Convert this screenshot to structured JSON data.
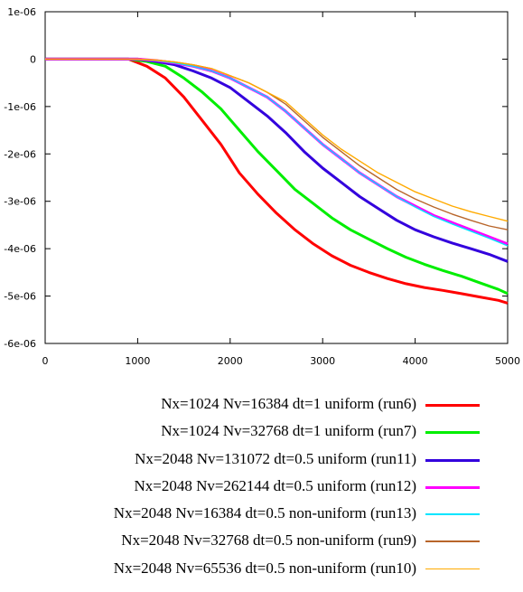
{
  "chart_data": {
    "type": "line",
    "title": "",
    "xlabel": "",
    "ylabel": "",
    "xlim": [
      0,
      5000
    ],
    "ylim": [
      -6e-06,
      1e-06
    ],
    "x_ticks": [
      0,
      1000,
      2000,
      3000,
      4000,
      5000
    ],
    "x_tick_labels": [
      "0",
      "1000",
      "2000",
      "3000",
      "4000",
      "5000"
    ],
    "y_ticks": [
      1e-06,
      0,
      -1e-06,
      -2e-06,
      -3e-06,
      -4e-06,
      -5e-06,
      -6e-06
    ],
    "y_tick_labels": [
      "1e-06",
      "0",
      "-1e-06",
      "-2e-06",
      "-3e-06",
      "-4e-06",
      "-5e-06",
      "-6e-06"
    ],
    "grid": false,
    "legend_position": "bottom",
    "series": [
      {
        "name": "Nx=1024 Nv=16384 dt=1 uniform (run6)",
        "color": "#ff0000",
        "width": 3,
        "x": [
          0,
          900,
          1100,
          1300,
          1500,
          1700,
          1900,
          2100,
          2300,
          2500,
          2700,
          2900,
          3100,
          3300,
          3500,
          3700,
          3900,
          4100,
          4300,
          4500,
          4700,
          4900,
          5000
        ],
        "y": [
          0,
          0,
          -1.5e-07,
          -4e-07,
          -8e-07,
          -1.3e-06,
          -1.8e-06,
          -2.4e-06,
          -2.85e-06,
          -3.25e-06,
          -3.6e-06,
          -3.9e-06,
          -4.15e-06,
          -4.35e-06,
          -4.5e-06,
          -4.63e-06,
          -4.74e-06,
          -4.82e-06,
          -4.88e-06,
          -4.95e-06,
          -5.02e-06,
          -5.09e-06,
          -5.15e-06
        ]
      },
      {
        "name": "Nx=1024 Nv=32768 dt=1 uniform (run7)",
        "color": "#00ee00",
        "width": 3,
        "x": [
          0,
          900,
          1100,
          1300,
          1500,
          1700,
          1900,
          2100,
          2300,
          2500,
          2700,
          2900,
          3100,
          3300,
          3500,
          3700,
          3900,
          4100,
          4300,
          4500,
          4700,
          4900,
          5000
        ],
        "y": [
          0,
          0,
          -5e-08,
          -1.5e-07,
          -4e-07,
          -7e-07,
          -1.05e-06,
          -1.5e-06,
          -1.95e-06,
          -2.35e-06,
          -2.75e-06,
          -3.05e-06,
          -3.35e-06,
          -3.6e-06,
          -3.8e-06,
          -4e-06,
          -4.18e-06,
          -4.33e-06,
          -4.46e-06,
          -4.58e-06,
          -4.72e-06,
          -4.86e-06,
          -4.95e-06
        ]
      },
      {
        "name": "Nx=2048 Nv=131072 dt=0.5 uniform (run11)",
        "color": "#3300dd",
        "width": 3,
        "x": [
          0,
          1000,
          1200,
          1400,
          1600,
          1800,
          2000,
          2200,
          2400,
          2600,
          2800,
          3000,
          3200,
          3400,
          3600,
          3800,
          4000,
          4200,
          4400,
          4600,
          4800,
          5000
        ],
        "y": [
          0,
          0,
          -5e-08,
          -1.2e-07,
          -2.5e-07,
          -4e-07,
          -6e-07,
          -9e-07,
          -1.2e-06,
          -1.55e-06,
          -1.95e-06,
          -2.3e-06,
          -2.6e-06,
          -2.9e-06,
          -3.15e-06,
          -3.4e-06,
          -3.6e-06,
          -3.75e-06,
          -3.88e-06,
          -4e-06,
          -4.12e-06,
          -4.27e-06
        ]
      },
      {
        "name": "Nx=2048 Nv=262144 dt=0.5 uniform (run12)",
        "color": "#ff00ff",
        "width": 3,
        "x": [
          0,
          1000,
          1200,
          1400,
          1600,
          1800,
          2000,
          2200,
          2400,
          2600,
          2800,
          3000,
          3200,
          3400,
          3600,
          3800,
          4000,
          4200,
          4400,
          4600,
          4800,
          5000
        ],
        "y": [
          0,
          0,
          -3e-08,
          -8e-08,
          -1.5e-07,
          -2.5e-07,
          -4e-07,
          -6e-07,
          -8e-07,
          -1.1e-06,
          -1.45e-06,
          -1.8e-06,
          -2.1e-06,
          -2.4e-06,
          -2.65e-06,
          -2.9e-06,
          -3.1e-06,
          -3.3e-06,
          -3.45e-06,
          -3.6e-06,
          -3.75e-06,
          -3.9e-06
        ]
      },
      {
        "name": "Nx=2048 Nv=16384 dt=0.5 non-uniform (run13)",
        "color": "#00e5ff",
        "width": 1.4,
        "x": [
          0,
          1000,
          1200,
          1400,
          1600,
          1800,
          2000,
          2200,
          2400,
          2600,
          2800,
          3000,
          3200,
          3400,
          3600,
          3800,
          4000,
          4200,
          4400,
          4600,
          4800,
          5000
        ],
        "y": [
          0,
          0,
          -3e-08,
          -8e-08,
          -1.5e-07,
          -2.5e-07,
          -4e-07,
          -6e-07,
          -8e-07,
          -1.1e-06,
          -1.45e-06,
          -1.8e-06,
          -2.1e-06,
          -2.4e-06,
          -2.65e-06,
          -2.9e-06,
          -3.12e-06,
          -3.32e-06,
          -3.48e-06,
          -3.63e-06,
          -3.78e-06,
          -3.94e-06
        ]
      },
      {
        "name": "Nx=2048 Nv=32768 dt=0.5 non-uniform (run9)",
        "color": "#b8652a",
        "width": 1.4,
        "x": [
          0,
          1000,
          1200,
          1400,
          1600,
          1800,
          2000,
          2200,
          2400,
          2600,
          2800,
          3000,
          3200,
          3400,
          3600,
          3800,
          4000,
          4200,
          4400,
          4600,
          4800,
          5000
        ],
        "y": [
          0,
          0,
          -2e-08,
          -6e-08,
          -1.2e-07,
          -2e-07,
          -3.5e-07,
          -5e-07,
          -7e-07,
          -9.5e-07,
          -1.3e-06,
          -1.65e-06,
          -1.95e-06,
          -2.25e-06,
          -2.5e-06,
          -2.75e-06,
          -2.95e-06,
          -3.12e-06,
          -3.27e-06,
          -3.4e-06,
          -3.52e-06,
          -3.6e-06
        ]
      },
      {
        "name": "Nx=2048 Nv=65536 dt=0.5 non-uniform (run10)",
        "color": "#ffaa00",
        "width": 1.4,
        "x": [
          0,
          1000,
          1200,
          1400,
          1600,
          1800,
          2000,
          2200,
          2400,
          2600,
          2800,
          3000,
          3200,
          3400,
          3600,
          3800,
          4000,
          4200,
          4400,
          4600,
          4800,
          5000
        ],
        "y": [
          0,
          0,
          -2e-08,
          -6e-08,
          -1.2e-07,
          -2e-07,
          -3.5e-07,
          -5e-07,
          -7e-07,
          -9e-07,
          -1.25e-06,
          -1.6e-06,
          -1.9e-06,
          -2.15e-06,
          -2.4e-06,
          -2.6e-06,
          -2.8e-06,
          -2.95e-06,
          -3.1e-06,
          -3.22e-06,
          -3.32e-06,
          -3.42e-06
        ]
      }
    ]
  }
}
